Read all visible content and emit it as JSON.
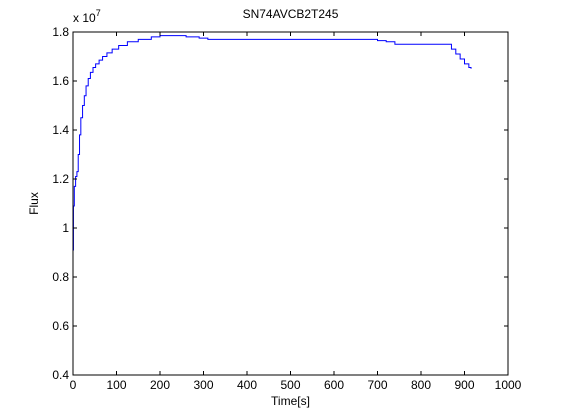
{
  "chart_data": {
    "type": "line",
    "title": "SN74AVCB2T245",
    "xlabel": "Time[s]",
    "ylabel": "Flux",
    "y_exponent_base": "x 10",
    "y_exponent_power": "7",
    "xlim": [
      0,
      1000
    ],
    "ylim": [
      0.4,
      1.8
    ],
    "xticks": [
      0,
      100,
      200,
      300,
      400,
      500,
      600,
      700,
      800,
      900,
      1000
    ],
    "xtick_labels": [
      "0",
      "100",
      "200",
      "300",
      "400",
      "500",
      "600",
      "700",
      "800",
      "900",
      "1000"
    ],
    "yticks": [
      0.4,
      0.6,
      0.8,
      1.0,
      1.2,
      1.4,
      1.6,
      1.8
    ],
    "ytick_labels": [
      "0.4",
      "0.6",
      "0.8",
      "1",
      "1.2",
      "1.4",
      "1.6",
      "1.8"
    ],
    "grid": false,
    "legend": null,
    "line_color": "#0000ff",
    "series": [
      {
        "x": [
          0,
          1,
          3,
          6,
          9,
          12,
          15,
          18,
          22,
          26,
          30,
          35,
          40,
          46,
          52,
          60,
          68,
          78,
          90,
          105,
          125,
          150,
          180,
          200,
          230,
          260,
          290,
          310,
          400,
          500,
          600,
          700,
          720,
          740,
          800,
          860,
          870,
          880,
          890,
          900,
          910,
          915
        ],
        "y": [
          0.91,
          1.09,
          1.17,
          1.21,
          1.23,
          1.3,
          1.38,
          1.45,
          1.5,
          1.54,
          1.58,
          1.61,
          1.635,
          1.655,
          1.67,
          1.685,
          1.7,
          1.715,
          1.73,
          1.745,
          1.76,
          1.77,
          1.78,
          1.785,
          1.785,
          1.78,
          1.775,
          1.77,
          1.77,
          1.77,
          1.77,
          1.765,
          1.76,
          1.75,
          1.75,
          1.75,
          1.73,
          1.71,
          1.69,
          1.67,
          1.655,
          1.65
        ]
      }
    ]
  }
}
